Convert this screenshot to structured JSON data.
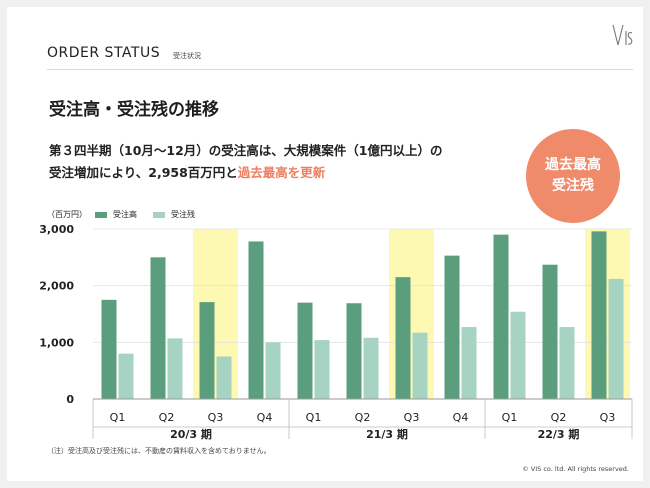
{
  "header": {
    "title": "ORDER STATUS",
    "subtitle": "受注状況"
  },
  "section_title": "受注高・受注残の推移",
  "lead": {
    "line1": "第３四半期（10月～12月）の受注高は、大規模案件（1億円以上）の",
    "line2_plain": "受注増加により、2,958百万円と",
    "line2_highlight": "過去最高を更新"
  },
  "badge": {
    "line1": "過去最高",
    "line2": "受注残"
  },
  "colors": {
    "orders": "#5a9e7e",
    "backlog": "#a7d3c2",
    "highlight": "#fdf8b2",
    "accent": "#ef8a6a"
  },
  "chart_data": {
    "type": "bar",
    "unit_label": "（百万円）",
    "ylim": [
      0,
      3000
    ],
    "yticks": [
      "3,000",
      "2,000",
      "1,000",
      "0"
    ],
    "categories": [
      "Q1",
      "Q2",
      "Q3",
      "Q4",
      "Q1",
      "Q2",
      "Q3",
      "Q4",
      "Q1",
      "Q2",
      "Q3"
    ],
    "groups": [
      {
        "label": "20/3 期",
        "count": 4
      },
      {
        "label": "21/3 期",
        "count": 4
      },
      {
        "label": "22/3 期",
        "count": 3
      }
    ],
    "highlighted": [
      2,
      6,
      10
    ],
    "series": [
      {
        "name": "受注高",
        "values": [
          1750,
          2500,
          1710,
          2780,
          1700,
          1690,
          2150,
          2530,
          2900,
          2370,
          2958
        ]
      },
      {
        "name": "受注残",
        "values": [
          800,
          1070,
          750,
          1000,
          1040,
          1080,
          1170,
          1270,
          1540,
          1270,
          2120
        ]
      }
    ]
  },
  "note": "（注）受注高及び受注残には、不動産の賃料収入を含めておりません。",
  "copyright": "© VIS co. ltd. All rights reserved."
}
